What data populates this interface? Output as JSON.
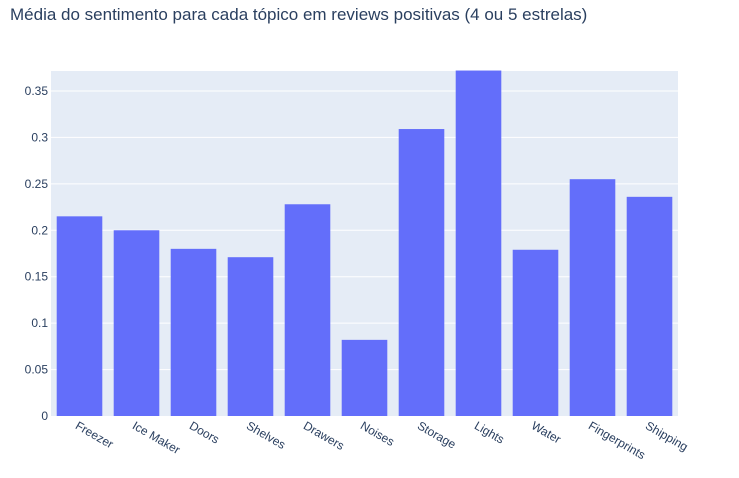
{
  "chart_data": {
    "type": "bar",
    "title": "Média do sentimento para cada tópico em reviews positivas (4 ou 5 estrelas)",
    "categories": [
      "Freezer",
      "Ice Maker",
      "Doors",
      "Shelves",
      "Drawers",
      "Noises",
      "Storage",
      "Lights",
      "Water",
      "Fingerprints",
      "Shipping"
    ],
    "values": [
      0.215,
      0.2,
      0.18,
      0.171,
      0.228,
      0.082,
      0.309,
      0.372,
      0.179,
      0.255,
      0.236
    ],
    "ylim": [
      0,
      0.3715
    ],
    "yticks": [
      0,
      0.05,
      0.1,
      0.15,
      0.2,
      0.25,
      0.3,
      0.35
    ],
    "ytick_labels": [
      "0",
      "0.05",
      "0.1",
      "0.15",
      "0.2",
      "0.25",
      "0.3",
      "0.35"
    ],
    "xlabel": "",
    "ylabel": "",
    "grid": true,
    "bar_color": "#636efa",
    "plot_bg": "#e5ecf6"
  }
}
